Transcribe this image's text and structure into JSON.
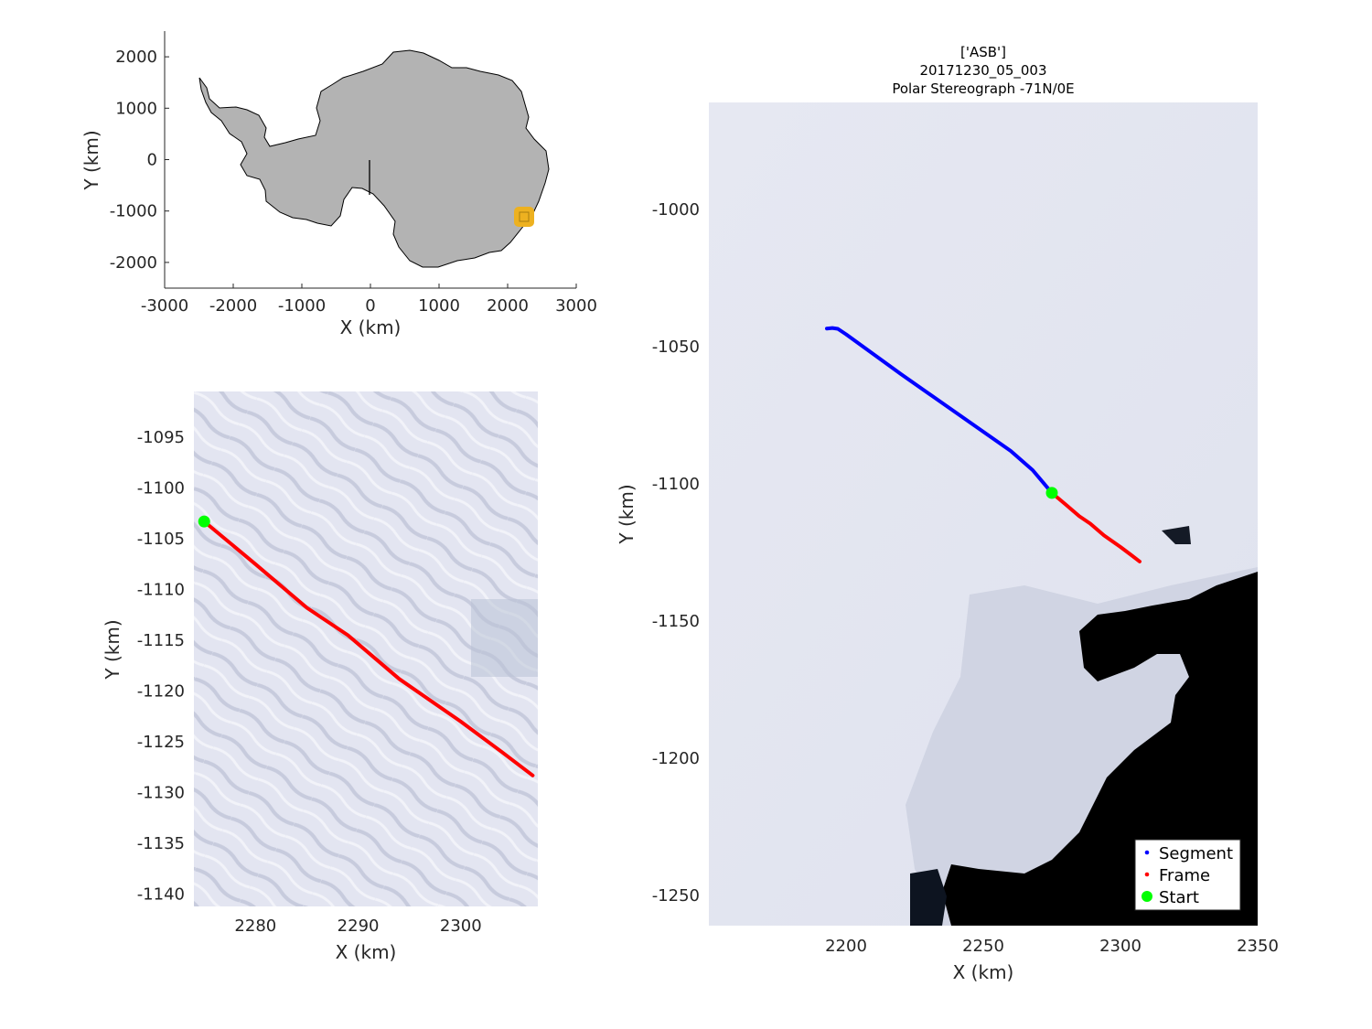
{
  "overview": {
    "xlabel": "X (km)",
    "ylabel": "Y (km)",
    "xticks": [
      "-3000",
      "-2000",
      "-1000",
      "0",
      "1000",
      "2000",
      "3000"
    ],
    "yticks": [
      "2000",
      "1000",
      "0",
      "-1000",
      "-2000"
    ],
    "colors": {
      "land": "#b3b3b3",
      "marker": "#edb120"
    }
  },
  "detail": {
    "xlabel": "X (km)",
    "ylabel": "Y (km)",
    "xticks": [
      "2280",
      "2290",
      "2300"
    ],
    "yticks": [
      "-1095",
      "-1100",
      "-1105",
      "-1110",
      "-1115",
      "-1120",
      "-1125",
      "-1130",
      "-1135",
      "-1140"
    ]
  },
  "main": {
    "title_lines": [
      "['ASB']",
      "20171230_05_003",
      "Polar Stereograph -71N/0E"
    ],
    "xlabel": "X (km)",
    "ylabel": "Y (km)",
    "xticks": [
      "2200",
      "2250",
      "2300",
      "2350"
    ],
    "yticks": [
      "-1000",
      "-1050",
      "-1100",
      "-1150",
      "-1200",
      "-1250"
    ],
    "legend": [
      {
        "label": "Segment",
        "color": "#0000ff"
      },
      {
        "label": "Frame",
        "color": "#ff0000"
      },
      {
        "label": "Start",
        "color": "#00ff00"
      }
    ]
  },
  "chart_data": [
    {
      "type": "map",
      "panel": "overview",
      "xlabel": "X (km)",
      "ylabel": "Y (km)",
      "xlim": [
        -3000,
        3000
      ],
      "ylim": [
        -2500,
        2500
      ],
      "marker": {
        "x": 2260,
        "y": -1110
      }
    },
    {
      "type": "line",
      "panel": "detail",
      "xlabel": "X (km)",
      "ylabel": "Y (km)",
      "xlim": [
        2274,
        2307.5
      ],
      "ylim": [
        -1141.2,
        -1090.5
      ],
      "series": [
        {
          "name": "Frame",
          "x": [
            2275,
            2280,
            2285,
            2289,
            2294,
            2300,
            2304,
            2307
          ],
          "y": [
            -1103.3,
            -1107.5,
            -1111.8,
            -1114.5,
            -1118.8,
            -1123,
            -1126,
            -1128.3
          ]
        }
      ],
      "start": {
        "x": 2275,
        "y": -1103.3
      }
    },
    {
      "type": "line",
      "panel": "main",
      "xlabel": "X (km)",
      "ylabel": "Y (km)",
      "xlim": [
        2150,
        2350
      ],
      "ylim": [
        -1261,
        -961
      ],
      "series": [
        {
          "name": "Segment",
          "x": [
            2193,
            2195,
            2197,
            2200,
            2220,
            2240,
            2260,
            2268,
            2275
          ],
          "y": [
            -1043.4,
            -1043.2,
            -1043.5,
            -1045.5,
            -1060,
            -1074,
            -1088,
            -1095,
            -1103.3
          ]
        },
        {
          "name": "Frame",
          "x": [
            2275,
            2280,
            2285,
            2289,
            2294,
            2300,
            2304,
            2307
          ],
          "y": [
            -1103.3,
            -1107.5,
            -1111.8,
            -1114.5,
            -1118.8,
            -1123,
            -1126,
            -1128.3
          ]
        }
      ],
      "start": {
        "x": 2275,
        "y": -1103.3
      }
    }
  ]
}
